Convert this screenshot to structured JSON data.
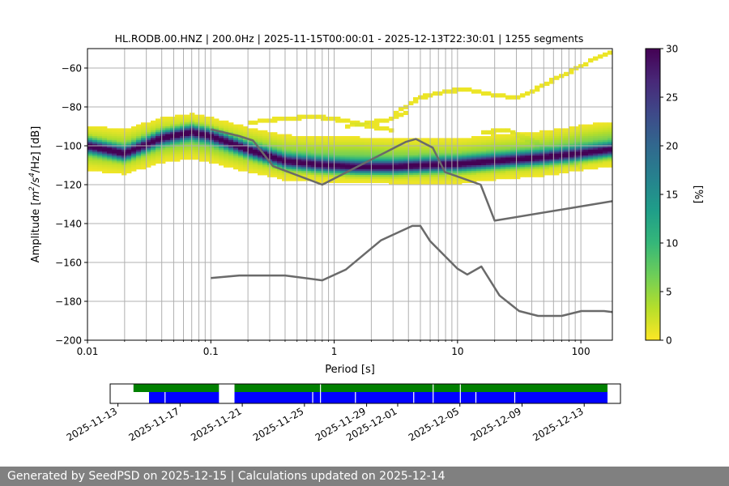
{
  "chart_data": [
    {
      "type": "heatmap",
      "title": "HL.RODB.00.HNZ | 200.0Hz | 2025-11-15T00:00:01 - 2025-12-13T22:30:01 | 1255 segments",
      "xlabel": "Period [s]",
      "ylabel_parts": {
        "prefix": "Amplitude [",
        "unit_base_1": "m",
        "unit_sup_1": "2",
        "unit_mid": "/s",
        "unit_sup_2": "4",
        "unit_suffix": "/Hz] [dB]"
      },
      "x_scale": "log",
      "xlim": [
        0.01,
        180
      ],
      "ylim": [
        -200,
        -50
      ],
      "x_ticks": [
        {
          "value": 0.01,
          "label": "0.01"
        },
        {
          "value": 0.1,
          "label": "0.1"
        },
        {
          "value": 1,
          "label": "1"
        },
        {
          "value": 10,
          "label": "10"
        },
        {
          "value": 100,
          "label": "100"
        }
      ],
      "y_ticks": [
        {
          "value": -60,
          "label": "−60"
        },
        {
          "value": -80,
          "label": "−80"
        },
        {
          "value": -100,
          "label": "−100"
        },
        {
          "value": -120,
          "label": "−120"
        },
        {
          "value": -140,
          "label": "−140"
        },
        {
          "value": -160,
          "label": "−160"
        },
        {
          "value": -180,
          "label": "−180"
        },
        {
          "value": -200,
          "label": "−200"
        }
      ],
      "grid": true,
      "colormap": "viridis_r",
      "colorbar": {
        "label": "[%]",
        "range": [
          0,
          30
        ],
        "ticks": [
          {
            "value": 0,
            "label": "0"
          },
          {
            "value": 5,
            "label": "5"
          },
          {
            "value": 10,
            "label": "10"
          },
          {
            "value": 15,
            "label": "15"
          },
          {
            "value": 20,
            "label": "20"
          },
          {
            "value": 25,
            "label": "25"
          },
          {
            "value": 30,
            "label": "30"
          }
        ],
        "stops": [
          "#fde725",
          "#b5de2b",
          "#6ece58",
          "#35b779",
          "#1f9e89",
          "#26828e",
          "#31688e",
          "#3e4989",
          "#482878",
          "#440154"
        ]
      },
      "density_ridges": [
        {
          "name": "main",
          "width_db": 4.5,
          "peak_percent": 26,
          "points": [
            [
              0.01,
              -100
            ],
            [
              0.02,
              -104
            ],
            [
              0.04,
              -96
            ],
            [
              0.07,
              -93
            ],
            [
              0.1,
              -95
            ],
            [
              0.2,
              -102
            ],
            [
              0.4,
              -108
            ],
            [
              0.8,
              -110
            ],
            [
              1.5,
              -111
            ],
            [
              3,
              -111
            ],
            [
              6,
              -110
            ],
            [
              10,
              -109.5
            ],
            [
              20,
              -108
            ],
            [
              50,
              -106
            ],
            [
              100,
              -104
            ],
            [
              180,
              -102
            ]
          ]
        },
        {
          "name": "broad",
          "width_db": 11,
          "peak_percent": 7,
          "points": [
            [
              0.01,
              -101
            ],
            [
              0.02,
              -103
            ],
            [
              0.04,
              -97
            ],
            [
              0.07,
              -95
            ],
            [
              0.1,
              -97
            ],
            [
              0.2,
              -102
            ],
            [
              0.4,
              -106
            ],
            [
              0.8,
              -107
            ],
            [
              1.5,
              -107
            ],
            [
              3,
              -108
            ],
            [
              6,
              -108
            ],
            [
              10,
              -108
            ],
            [
              20,
              -106
            ],
            [
              50,
              -104
            ],
            [
              100,
              -101
            ],
            [
              180,
              -99
            ]
          ]
        }
      ],
      "sparse_curves": [
        {
          "points": [
            [
              3,
              -84
            ],
            [
              5,
              -75
            ],
            [
              8,
              -72
            ],
            [
              12,
              -71
            ],
            [
              20,
              -74
            ],
            [
              30,
              -75
            ],
            [
              40,
              -72
            ],
            [
              60,
              -66
            ],
            [
              100,
              -59
            ],
            [
              150,
              -53
            ],
            [
              180,
              -52
            ]
          ]
        },
        {
          "points": [
            [
              1.2,
              -90
            ],
            [
              2,
              -88
            ],
            [
              3,
              -86
            ],
            [
              4,
              -82
            ]
          ]
        },
        {
          "points": [
            [
              15,
              -93
            ],
            [
              25,
              -92
            ],
            [
              35,
              -96
            ],
            [
              50,
              -100
            ],
            [
              70,
              -108
            ],
            [
              100,
              -111
            ]
          ]
        },
        {
          "points": [
            [
              0.2,
              -88
            ],
            [
              0.4,
              -86
            ],
            [
              0.7,
              -85
            ],
            [
              1.2,
              -87
            ],
            [
              2,
              -90
            ],
            [
              3,
              -92
            ]
          ]
        }
      ],
      "noise_models": [
        {
          "points": [
            [
              0.1,
              -91.5
            ],
            [
              0.17,
              -95
            ],
            [
              0.22,
              -97.3
            ],
            [
              0.32,
              -110.5
            ],
            [
              0.8,
              -120
            ],
            [
              3.8,
              -98
            ],
            [
              4.6,
              -96.5
            ],
            [
              6.3,
              -101
            ],
            [
              7.9,
              -113.5
            ],
            [
              15.4,
              -120
            ],
            [
              20,
              -138.5
            ],
            [
              180,
              -128.5
            ]
          ]
        },
        {
          "points": [
            [
              0.1,
              -168
            ],
            [
              0.17,
              -166.7
            ],
            [
              0.4,
              -166.7
            ],
            [
              0.8,
              -169.2
            ],
            [
              1.24,
              -163.7
            ],
            [
              2.4,
              -148.6
            ],
            [
              4.3,
              -141.2
            ],
            [
              5,
              -141.2
            ],
            [
              6,
              -149.1
            ],
            [
              10,
              -163.2
            ],
            [
              12,
              -166.2
            ],
            [
              15.6,
              -162.1
            ],
            [
              21.9,
              -177
            ],
            [
              31.6,
              -185
            ],
            [
              45,
              -187.5
            ],
            [
              70,
              -187.5
            ],
            [
              101,
              -185
            ],
            [
              154,
              -185
            ],
            [
              180,
              -185.5
            ]
          ]
        }
      ]
    },
    {
      "type": "timeline",
      "x_ticks": [
        "2025-11-13",
        "2025-11-17",
        "2025-11-21",
        "2025-11-25",
        "2025-11-29",
        "2025-12-01",
        "2025-12-05",
        "2025-12-09",
        "2025-12-13"
      ],
      "tick_dates": [
        "2025-11-13",
        "2025-11-17",
        "2025-11-21",
        "2025-11-25",
        "2025-11-29",
        "2025-12-01",
        "2025-12-05",
        "2025-12-09",
        "2025-12-13"
      ],
      "range_dates": [
        "2025-11-12 12:00",
        "2025-12-15 08:00"
      ],
      "colors": {
        "data": "#008000",
        "psd": "#0000ff"
      },
      "data_spans": [
        [
          "2025-11-14 00:00",
          "2025-11-19 12:00"
        ],
        [
          "2025-11-20 12:00",
          "2025-12-14 12:00"
        ]
      ],
      "psd_spans": [
        [
          "2025-11-15 00:00",
          "2025-11-19 12:00"
        ],
        [
          "2025-11-20 12:00",
          "2025-12-14 12:00"
        ]
      ],
      "psd_gaps": [
        "2025-11-16 00:00",
        "2025-11-25 12:00",
        "2025-11-26 00:00",
        "2025-11-28 06:00",
        "2025-12-02 00:00",
        "2025-12-03 06:00",
        "2025-12-05 00:00",
        "2025-12-06 00:00",
        "2025-12-08 12:00"
      ],
      "data_gaps": [
        "2025-11-26 00:00",
        "2025-12-03 06:00",
        "2025-12-05 00:00"
      ]
    }
  ],
  "footer": {
    "text": "Generated by SeedPSD on 2025-12-15 | Calculations updated on 2025-12-14"
  }
}
